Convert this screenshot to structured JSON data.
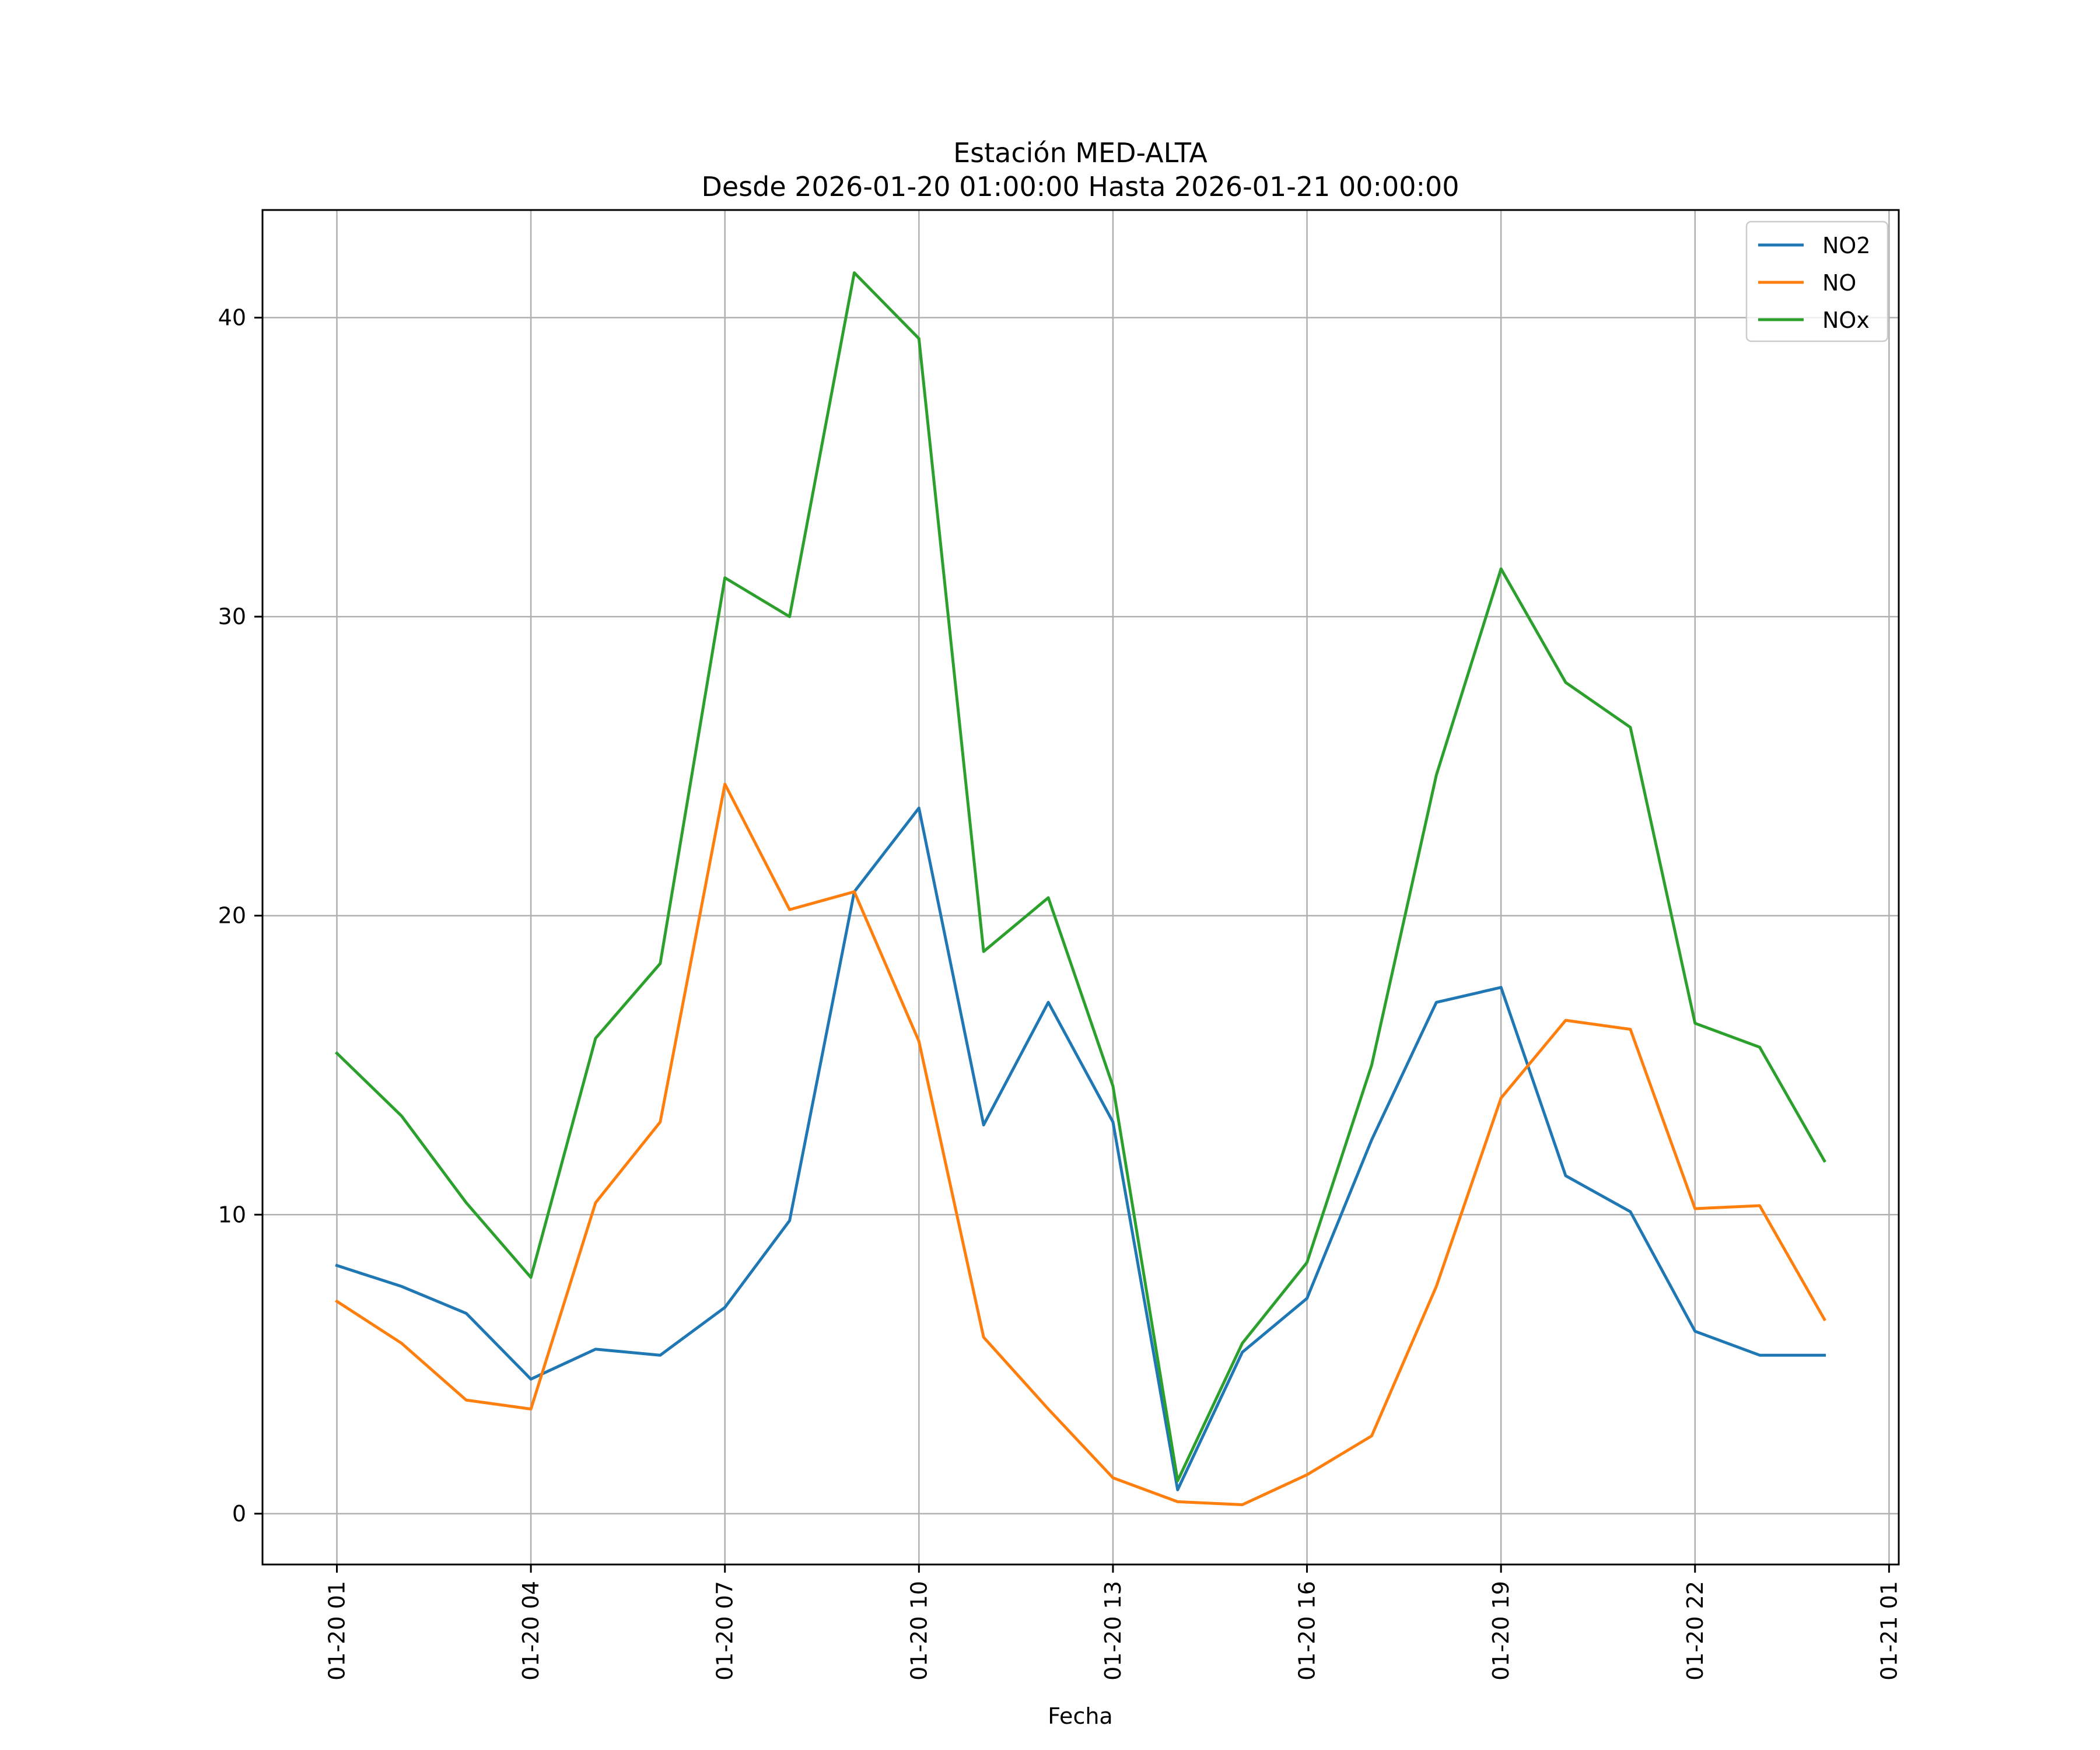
{
  "chart_data": {
    "type": "line",
    "title_line1": "Estación MED-ALTA",
    "title_line2": "Desde 2026-01-20 01:00:00 Hasta 2026-01-21 00:00:00",
    "xlabel": "Fecha",
    "ylabel": "",
    "x": [
      "2026-01-20 01:00",
      "2026-01-20 02:00",
      "2026-01-20 03:00",
      "2026-01-20 04:00",
      "2026-01-20 05:00",
      "2026-01-20 06:00",
      "2026-01-20 07:00",
      "2026-01-20 08:00",
      "2026-01-20 09:00",
      "2026-01-20 10:00",
      "2026-01-20 11:00",
      "2026-01-20 12:00",
      "2026-01-20 13:00",
      "2026-01-20 14:00",
      "2026-01-20 15:00",
      "2026-01-20 16:00",
      "2026-01-20 17:00",
      "2026-01-20 18:00",
      "2026-01-20 19:00",
      "2026-01-20 20:00",
      "2026-01-20 21:00",
      "2026-01-20 22:00",
      "2026-01-20 23:00",
      "2026-01-21 00:00"
    ],
    "series": [
      {
        "name": "NO2",
        "color": "#1f77b4",
        "values": [
          8.3,
          7.6,
          6.7,
          4.5,
          5.5,
          5.3,
          6.9,
          9.8,
          20.8,
          23.6,
          13.0,
          17.1,
          13.1,
          0.8,
          5.4,
          7.2,
          12.5,
          17.1,
          17.6,
          11.3,
          10.1,
          6.1,
          5.3,
          5.3
        ]
      },
      {
        "name": "NO",
        "color": "#ff7f0e",
        "values": [
          7.1,
          5.7,
          3.8,
          3.5,
          10.4,
          13.1,
          24.4,
          20.2,
          20.8,
          15.8,
          5.9,
          3.5,
          1.2,
          0.4,
          0.3,
          1.3,
          2.6,
          7.6,
          13.9,
          16.5,
          16.2,
          10.2,
          10.3,
          6.5
        ]
      },
      {
        "name": "NOx",
        "color": "#2ca02c",
        "values": [
          15.4,
          13.3,
          10.4,
          7.9,
          15.9,
          18.4,
          31.3,
          30.0,
          41.5,
          39.3,
          18.8,
          20.6,
          14.3,
          1.1,
          5.7,
          8.4,
          15.0,
          24.7,
          31.6,
          27.8,
          26.3,
          16.4,
          15.6,
          11.8
        ]
      }
    ],
    "xticks": [
      "01-20 01",
      "01-20 04",
      "01-20 07",
      "01-20 10",
      "01-20 13",
      "01-20 16",
      "01-20 19",
      "01-20 22",
      "01-21 01"
    ],
    "xtick_hours": [
      0,
      3,
      6,
      9,
      12,
      15,
      18,
      21,
      24
    ],
    "xlim": [
      -1.15,
      24.15
    ],
    "yticks": [
      "0",
      "10",
      "20",
      "30",
      "40"
    ],
    "ytick_values": [
      0,
      10,
      20,
      30,
      40
    ],
    "ylim": [
      -1.7,
      43.6
    ],
    "grid": true,
    "legend": "upper right"
  }
}
